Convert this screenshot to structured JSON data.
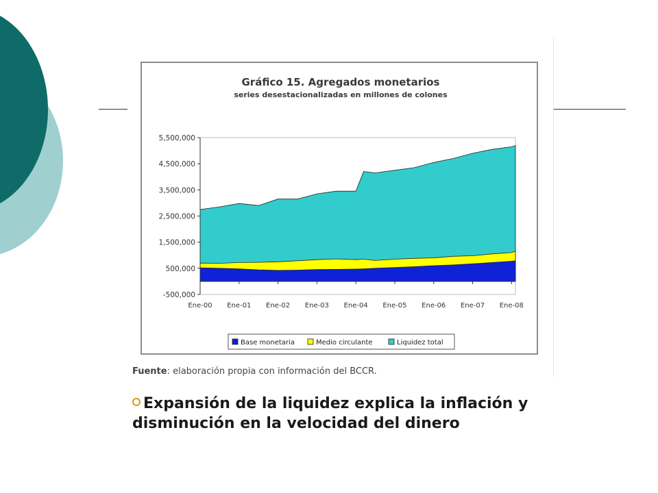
{
  "slide": {
    "source_label": "Fuente",
    "source_text": ": elaboración propia con información del BCCR.",
    "bullet_text": "Expansión de la liquidez explica la inflación y disminución en la velocidad del dinero",
    "colors": {
      "dark_teal": "#0e6b68",
      "light_teal": "#9fd0cf",
      "bullet": "#d59a1a"
    }
  },
  "chart_data": {
    "type": "area",
    "title": "Gráfico 15. Agregados monetarios",
    "subtitle": "series desestacionalizadas en millones de colones",
    "xlabel": "",
    "ylabel": "",
    "ylim": [
      -500000,
      5500000
    ],
    "yticks": [
      "5,500,000",
      "4,500,000",
      "3,500,000",
      "2,500,000",
      "1,500,000",
      "500,000",
      "-500,000"
    ],
    "ytick_values": [
      5500000,
      4500000,
      3500000,
      2500000,
      1500000,
      500000,
      -500000
    ],
    "xticks": [
      "Ene-00",
      "Ene-01",
      "Ene-02",
      "Ene-03",
      "Ene-04",
      "Ene-05",
      "Ene-06",
      "Ene-07",
      "Ene-08"
    ],
    "x": [
      0,
      0.5,
      1,
      1.5,
      2,
      2.5,
      3,
      3.5,
      4,
      4.2,
      4.5,
      5,
      5.5,
      6,
      6.5,
      7,
      7.5,
      8,
      8.1
    ],
    "series": [
      {
        "name": "Base monetaria",
        "color": "#1022d8",
        "values": [
          520000,
          500000,
          480000,
          440000,
          420000,
          430000,
          450000,
          460000,
          470000,
          480000,
          500000,
          530000,
          560000,
          600000,
          630000,
          670000,
          720000,
          770000,
          790000
        ]
      },
      {
        "name": "Medio circulante",
        "color": "#ffff00",
        "values": [
          700000,
          690000,
          720000,
          730000,
          750000,
          790000,
          830000,
          860000,
          830000,
          850000,
          800000,
          850000,
          880000,
          900000,
          960000,
          980000,
          1050000,
          1100000,
          1150000
        ]
      },
      {
        "name": "Liquidez total",
        "color": "#33cccc",
        "values": [
          2750000,
          2850000,
          2980000,
          2900000,
          3150000,
          3150000,
          3350000,
          3450000,
          3450000,
          4200000,
          4150000,
          4250000,
          4350000,
          4550000,
          4700000,
          4900000,
          5050000,
          5150000,
          5200000
        ]
      }
    ],
    "grid": false,
    "legend_position": "bottom"
  }
}
